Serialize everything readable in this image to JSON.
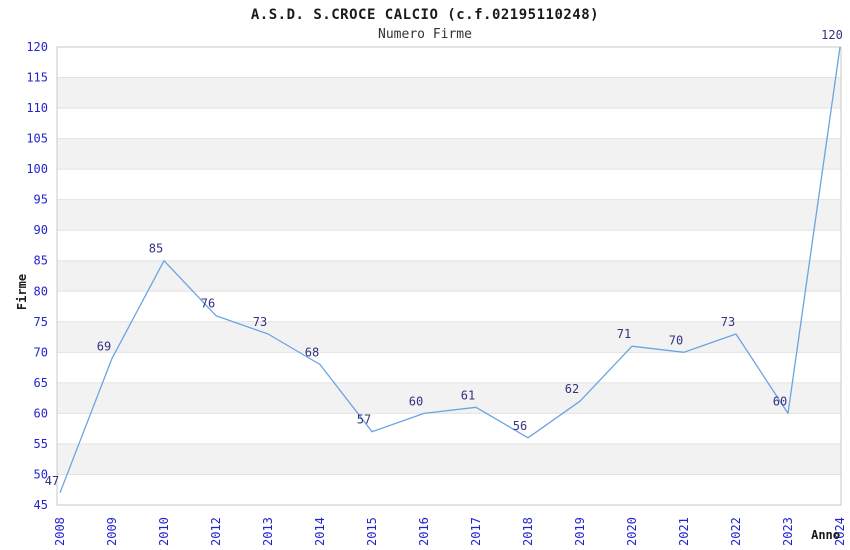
{
  "page": {
    "background": "#ffffff"
  },
  "chart_data": {
    "type": "line",
    "title": "A.S.D. S.CROCE CALCIO (c.f.02195110248)",
    "subtitle": "Numero Firme",
    "xlabel": "Anno",
    "ylabel": "Firme",
    "categories": [
      "2008",
      "2009",
      "2010",
      "2012",
      "2013",
      "2014",
      "2015",
      "2016",
      "2017",
      "2018",
      "2019",
      "2020",
      "2021",
      "2022",
      "2023",
      "2024"
    ],
    "values": [
      47,
      69,
      85,
      76,
      73,
      68,
      57,
      60,
      61,
      56,
      62,
      71,
      70,
      73,
      60,
      120
    ],
    "ylim": [
      45,
      120
    ],
    "ytick_step": 5,
    "yticks": [
      45,
      50,
      55,
      60,
      65,
      70,
      75,
      80,
      85,
      90,
      95,
      100,
      105,
      110,
      115,
      120
    ],
    "grid": "horizontal-bands-alternating",
    "legend_position": "none",
    "data_labels_visible": true,
    "colors": {
      "line": "#6aa5e2",
      "data_label": "#333380",
      "tick_label": "#2424cc",
      "band_gray": "#f2f2f2",
      "band_white": "#ffffff",
      "gridline": "#e2e2e2",
      "plot_border": "#c9c9c9",
      "title_text": "#1a1a1a"
    }
  }
}
